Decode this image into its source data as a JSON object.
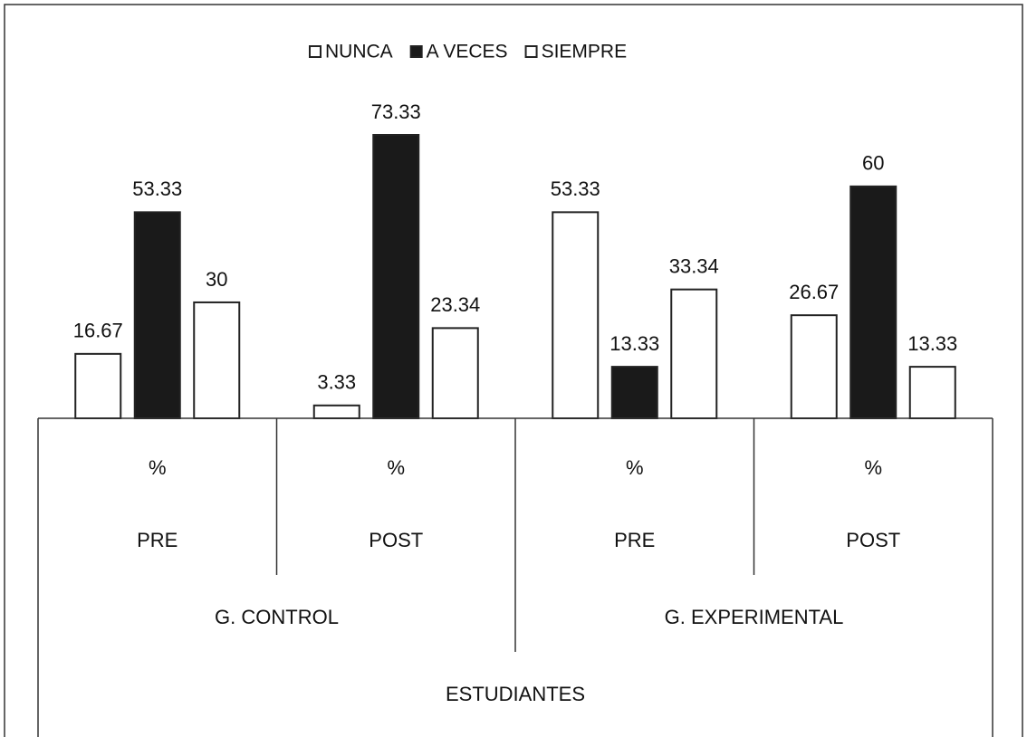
{
  "chart_data": {
    "type": "bar",
    "categories": [
      "%",
      "%",
      "%",
      "%"
    ],
    "category_levels": [
      [
        "PRE",
        "POST",
        "PRE",
        "POST"
      ],
      [
        "G. CONTROL",
        "G. EXPERIMENTAL"
      ],
      [
        "ESTUDIANTES"
      ]
    ],
    "series": [
      {
        "name": "NUNCA",
        "color": "#ffffff",
        "values": [
          16.67,
          3.33,
          53.33,
          26.67
        ]
      },
      {
        "name": "A VECES",
        "color": "#1a1a1a",
        "values": [
          53.33,
          73.33,
          13.33,
          60
        ]
      },
      {
        "name": "SIEMPRE",
        "color": "#ffffff",
        "values": [
          30,
          23.34,
          33.34,
          13.33
        ]
      }
    ],
    "legend": "top",
    "data_labels": true
  }
}
